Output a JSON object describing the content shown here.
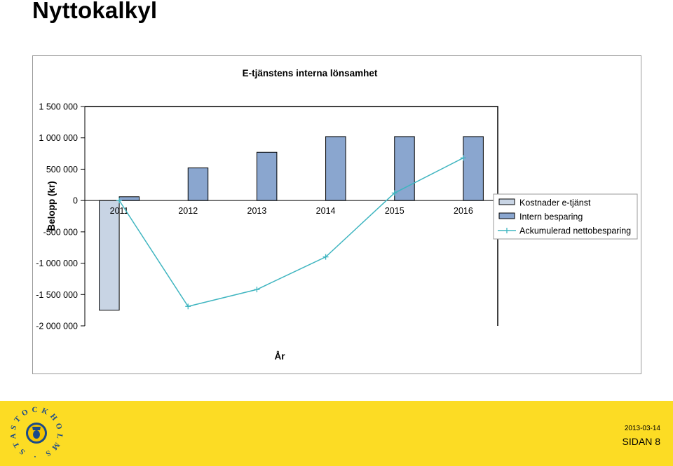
{
  "slide": {
    "title": "Nyttokalkyl"
  },
  "chart_data": {
    "type": "bar",
    "title": "E-tjänstens interna lönsamhet",
    "xlabel": "År",
    "ylabel": "Belopp (kr)",
    "categories": [
      "2011",
      "2012",
      "2013",
      "2014",
      "2015",
      "2016"
    ],
    "ylim": [
      -2000000,
      1500000
    ],
    "yticks": [
      1500000,
      1000000,
      500000,
      0,
      -500000,
      -1000000,
      -1500000,
      -2000000
    ],
    "ytick_labels": [
      "1 500 000",
      "1 000 000",
      "500 000",
      "0",
      "-500 000",
      "-1 000 000",
      "-1 500 000",
      "-2 000 000"
    ],
    "grid": false,
    "legend_position": "right",
    "series": [
      {
        "name": "Kostnader e-tjänst",
        "type": "bar",
        "color": "#c8d4e4",
        "values": [
          -1750000,
          0,
          0,
          0,
          0,
          0
        ]
      },
      {
        "name": "Intern besparing",
        "type": "bar",
        "color": "#8aa6cf",
        "values": [
          60000,
          520000,
          770000,
          1020000,
          1020000,
          1020000
        ]
      },
      {
        "name": "Ackumulerad nettobesparing",
        "type": "line",
        "color": "#3fb5c0",
        "values": [
          0,
          -1690000,
          -1420000,
          -900000,
          120000,
          680000
        ]
      }
    ]
  },
  "footer": {
    "logo_text": "STOCKHOLMS STAD",
    "date": "2013-03-14",
    "page": "SIDAN 8",
    "color": "#fcdc24"
  }
}
